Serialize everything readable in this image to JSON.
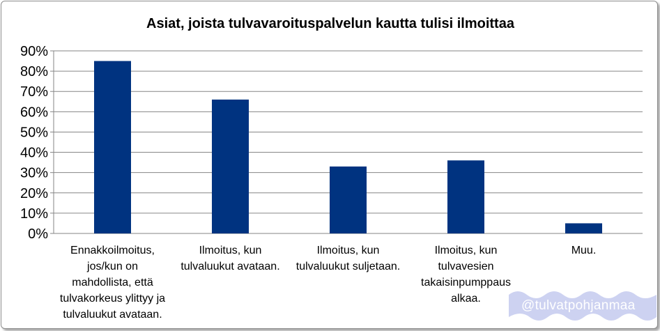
{
  "chart_data": {
    "type": "bar",
    "title": "Asiat, joista tulvavaroituspalvelun kautta tulisi ilmoittaa",
    "categories": [
      "Ennakkoilmoitus, jos/kun on mahdollista, että tulvakorkeus ylittyy ja tulvaluukut avataan.",
      "Ilmoitus, kun tulvaluukut avataan.",
      "Ilmoitus, kun tulvaluukut suljetaan.",
      "Ilmoitus, kun tulvavesien takaisinpumppaus alkaa.",
      "Muu."
    ],
    "category_lines": [
      [
        "Ennakkoilmoitus,",
        "jos/kun on",
        "mahdollista, että",
        "tulvakorkeus ylittyy ja",
        "tulvaluukut avataan."
      ],
      [
        "Ilmoitus, kun",
        "tulvaluukut avataan."
      ],
      [
        "Ilmoitus, kun",
        "tulvaluukut suljetaan."
      ],
      [
        "Ilmoitus, kun",
        "tulvavesien",
        "takaisinpumppaus",
        "alkaa."
      ],
      [
        "Muu."
      ]
    ],
    "values": [
      85,
      66,
      33,
      36,
      5
    ],
    "ylim": [
      0,
      90
    ],
    "yticks": [
      0,
      10,
      20,
      30,
      40,
      50,
      60,
      70,
      80,
      90
    ],
    "ytick_labels": [
      "0%",
      "10%",
      "20%",
      "30%",
      "40%",
      "50%",
      "60%",
      "70%",
      "80%",
      "90%"
    ],
    "grid": true,
    "legend": false,
    "colors": {
      "bar": "#003380",
      "grid": "#868686",
      "text": "#000000"
    }
  },
  "watermark": {
    "text": "@tulvatpohjanmaa"
  }
}
